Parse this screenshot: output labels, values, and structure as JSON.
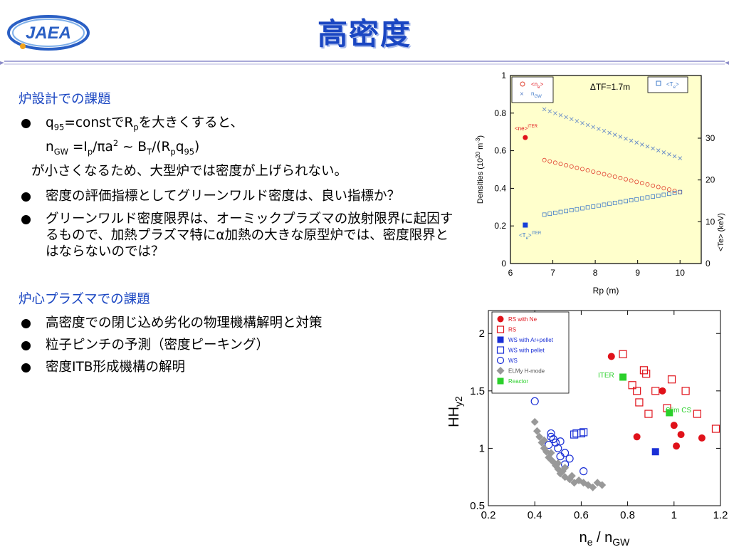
{
  "header": {
    "logo_text": "JAEA",
    "title": "高密度"
  },
  "sections": [
    {
      "heading": "炉設計での課題",
      "bullet1_a": "q",
      "bullet1_a_sub": "95",
      "bullet1_b": "=constでR",
      "bullet1_b_sub": "p",
      "bullet1_c": "を大きくすると、",
      "formula_n": "n",
      "formula_n_sub": "GW",
      "formula_eq": " =I",
      "formula_ip_sub": "p",
      "formula_pi": "/πa",
      "formula_a_sup": "2",
      "formula_bt": " ~ B",
      "formula_bt_sub": "T",
      "formula_rp": "/(R",
      "formula_rp_sub": "p",
      "formula_q": "q",
      "formula_q_sub": "95",
      "formula_close": ")",
      "continuation": "が小さくなるため、大型炉では密度が上げられない。",
      "bullet2": "密度の評価指標としてグリーンワルド密度は、良い指標か？",
      "bullet3": "グリーンワルド密度限界は、オーミックプラズマの放射限界に起因するもので、加熱プラズマ特にα加熱の大きな原型炉では、密度限界とはならないのでは？"
    },
    {
      "heading": "炉心プラズマでの課題",
      "bullet1": "高密度での閉じ込め劣化の物理機構解明と対策",
      "bullet2": "粒子ピンチの予測（密度ピーキング）",
      "bullet3": "密度ITB形成機構の解明"
    }
  ],
  "chart_data": [
    {
      "type": "scatter",
      "title": "",
      "annotation": "ΔTF=1.7m",
      "xlabel": "Rp (m)",
      "ylabel": "Densities (10^20 m^-3)",
      "ylabel_main": "Densities (10",
      "ylabel_sup": "20",
      "ylabel_unit": " m",
      "ylabel_sup2": "-3",
      "ylabel_close": ")",
      "y2label": "<Te> (keV)",
      "xlim": [
        6,
        10.5
      ],
      "ylim": [
        0,
        1
      ],
      "y2lim": [
        0,
        45
      ],
      "xticks": [
        "6",
        "7",
        "8",
        "9",
        "10"
      ],
      "yticks": [
        "0",
        "0.2",
        "0.4",
        "0.6",
        "0.8",
        "1"
      ],
      "y2ticks": [
        "0",
        "10",
        "20",
        "30"
      ],
      "legend_left": {
        "n_label": "<n",
        "n_sub": "e",
        "n_close": ">",
        "ngw_label": "n",
        "ngw_sub": "GW"
      },
      "legend_right": {
        "label": "<T",
        "sub": "e",
        "close": ">"
      },
      "legend_placement": "top-left and top-right",
      "colors": {
        "ne": "#e0402e",
        "ngw": "#5b82c8",
        "te": "#3e79c9",
        "iter_ne": "#e0121a",
        "iter_te": "#1740d8",
        "background": "#ffffcc"
      },
      "series": [
        {
          "name": "<n_e>",
          "axis": "left",
          "x_start": 6.8,
          "x_end": 10.0,
          "y_start": 0.55,
          "y_end": 0.38
        },
        {
          "name": "n_GW",
          "axis": "left",
          "x_start": 6.8,
          "x_end": 10.0,
          "y_start": 0.82,
          "y_end": 0.56
        },
        {
          "name": "<T_e>",
          "axis": "right",
          "x_start": 6.8,
          "x_end": 10.0,
          "y_start": 11.7,
          "y_end": 17.1
        }
      ],
      "iter_points": [
        {
          "label": "<ne>",
          "label_sup": "ITER",
          "x": 6.35,
          "y": 0.67,
          "axis": "left"
        },
        {
          "label": "<T",
          "label_sub": "e",
          "label_close": ">",
          "label_sup": "ITER",
          "x": 6.35,
          "y": 9.2,
          "axis": "right"
        }
      ]
    },
    {
      "type": "scatter",
      "title": "",
      "xlabel": "n_e / n_GW",
      "xlabel_main": "n",
      "xlabel_sub": "e",
      "xlabel_mid": " / n",
      "xlabel_sub2": "GW",
      "ylabel": "HH_y2",
      "ylabel_main": "HH",
      "ylabel_sub": "y2",
      "xlim": [
        0.2,
        1.2
      ],
      "ylim": [
        0.5,
        2.2
      ],
      "xticks": [
        "0.2",
        "0.4",
        "0.6",
        "0.8",
        "1",
        "1.2"
      ],
      "yticks": [
        "0.5",
        "1",
        "1.5",
        "2"
      ],
      "legend_placement": "top-left",
      "legend": [
        {
          "name": "RS with Ne",
          "marker": "filled-circle",
          "color": "#e0121a"
        },
        {
          "name": "RS",
          "marker": "open-square",
          "color": "#e0121a"
        },
        {
          "name": "WS with Ar+pellet",
          "marker": "filled-square",
          "color": "#1a2fd6"
        },
        {
          "name": "WS with pellet",
          "marker": "open-square",
          "color": "#1a2fd6"
        },
        {
          "name": "WS",
          "marker": "open-circle",
          "color": "#1a2fd6"
        },
        {
          "name": "ELMy H-mode",
          "marker": "diamond",
          "color": "#999999"
        },
        {
          "name": "Reactor",
          "marker": "filled-square",
          "color": "#2bd02b"
        }
      ],
      "annotations": [
        {
          "text": "ITER",
          "color": "#2bd02b"
        },
        {
          "text": "Slim CS",
          "color": "#2bd02b"
        }
      ],
      "series": [
        {
          "name": "RS with Ne",
          "points": [
            [
              0.73,
              1.8
            ],
            [
              0.84,
              1.1
            ],
            [
              0.95,
              1.5
            ],
            [
              1.0,
              1.2
            ],
            [
              1.01,
              1.02
            ],
            [
              1.03,
              1.12
            ],
            [
              1.12,
              1.09
            ]
          ]
        },
        {
          "name": "RS",
          "points": [
            [
              0.78,
              1.82
            ],
            [
              0.82,
              1.55
            ],
            [
              0.84,
              1.5
            ],
            [
              0.85,
              1.4
            ],
            [
              0.87,
              1.68
            ],
            [
              0.88,
              1.65
            ],
            [
              0.89,
              1.3
            ],
            [
              0.92,
              1.5
            ],
            [
              0.97,
              1.35
            ],
            [
              0.99,
              1.6
            ],
            [
              1.05,
              1.5
            ],
            [
              1.1,
              1.3
            ],
            [
              1.18,
              1.17
            ]
          ]
        },
        {
          "name": "WS with Ar+pellet",
          "points": [
            [
              0.92,
              0.97
            ]
          ]
        },
        {
          "name": "WS with pellet",
          "points": [
            [
              0.57,
              1.12
            ],
            [
              0.58,
              1.13
            ],
            [
              0.6,
              1.13
            ],
            [
              0.61,
              1.14
            ]
          ]
        },
        {
          "name": "WS",
          "points": [
            [
              0.4,
              1.41
            ],
            [
              0.46,
              1.03
            ],
            [
              0.47,
              1.1
            ],
            [
              0.47,
              1.13
            ],
            [
              0.48,
              1.08
            ],
            [
              0.49,
              1.05
            ],
            [
              0.5,
              1.0
            ],
            [
              0.51,
              0.93
            ],
            [
              0.51,
              1.06
            ],
            [
              0.53,
              0.96
            ],
            [
              0.53,
              0.86
            ],
            [
              0.55,
              0.91
            ],
            [
              0.61,
              0.8
            ]
          ]
        },
        {
          "name": "ELMy H-mode",
          "points": [
            [
              0.4,
              1.23
            ],
            [
              0.41,
              1.15
            ],
            [
              0.42,
              1.1
            ],
            [
              0.43,
              1.05
            ],
            [
              0.44,
              1.0
            ],
            [
              0.45,
              0.97
            ],
            [
              0.46,
              0.92
            ],
            [
              0.47,
              0.9
            ],
            [
              0.48,
              0.88
            ],
            [
              0.49,
              0.85
            ],
            [
              0.5,
              0.82
            ],
            [
              0.51,
              0.78
            ],
            [
              0.52,
              0.8
            ],
            [
              0.53,
              0.75
            ],
            [
              0.55,
              0.73
            ],
            [
              0.57,
              0.7
            ],
            [
              0.59,
              0.72
            ],
            [
              0.61,
              0.7
            ],
            [
              0.63,
              0.68
            ],
            [
              0.65,
              0.66
            ],
            [
              0.67,
              0.7
            ],
            [
              0.69,
              0.68
            ],
            [
              0.44,
              1.07
            ],
            [
              0.47,
              0.96
            ],
            [
              0.5,
              0.87
            ],
            [
              0.53,
              0.83
            ],
            [
              0.56,
              0.76
            ]
          ]
        },
        {
          "name": "Reactor",
          "points": [
            [
              0.78,
              1.62
            ],
            [
              0.98,
              1.31
            ]
          ]
        }
      ]
    }
  ]
}
